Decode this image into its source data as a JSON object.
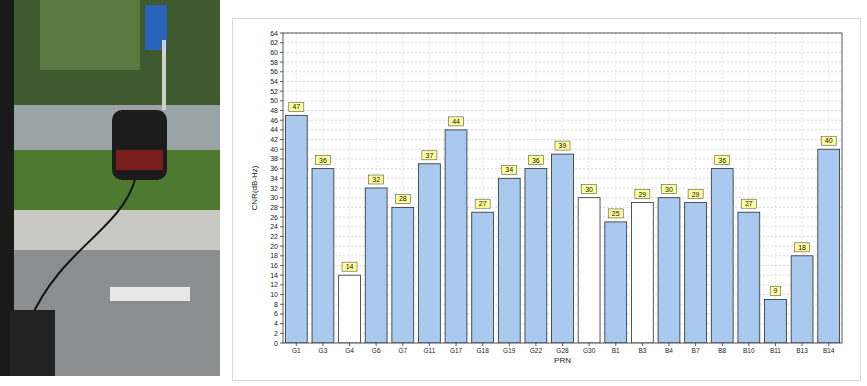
{
  "chart_data": {
    "type": "bar",
    "x_label": "PRN",
    "y_label": "CNR(dB-Hz)",
    "categories": [
      "G1",
      "G3",
      "G4",
      "G6",
      "G7",
      "G11",
      "G17",
      "G18",
      "G19",
      "G22",
      "G28",
      "G30",
      "B1",
      "B3",
      "B4",
      "B7",
      "B8",
      "B10",
      "B11",
      "B13",
      "B14"
    ],
    "values": [
      47,
      36,
      14,
      32,
      28,
      37,
      44,
      27,
      34,
      36,
      39,
      30,
      25,
      29,
      30,
      29,
      36,
      27,
      9,
      18,
      40
    ],
    "colors": [
      "#a9c9ef",
      "#a9c9ef",
      "#ffffff",
      "#a9c9ef",
      "#a9c9ef",
      "#a9c9ef",
      "#a9c9ef",
      "#a9c9ef",
      "#a9c9ef",
      "#a9c9ef",
      "#a9c9ef",
      "#ffffff",
      "#a9c9ef",
      "#ffffff",
      "#a9c9ef",
      "#a9c9ef",
      "#a9c9ef",
      "#a9c9ef",
      "#a9c9ef",
      "#a9c9ef",
      "#a9c9ef"
    ],
    "ylim": [
      0,
      64
    ],
    "yticks": [
      0,
      2,
      4,
      6,
      8,
      10,
      12,
      14,
      16,
      18,
      20,
      22,
      24,
      26,
      28,
      30,
      32,
      34,
      36,
      38,
      40,
      42,
      44,
      46,
      48,
      50,
      52,
      54,
      56,
      58,
      60,
      62,
      64
    ],
    "grid": true,
    "data_labels": true
  }
}
